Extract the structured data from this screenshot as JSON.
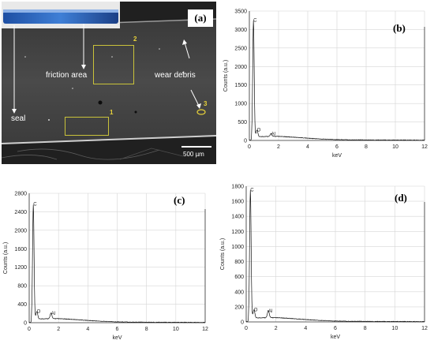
{
  "panel_a": {
    "label": "(a)",
    "annotations": {
      "friction_area": "friction area",
      "wear_debris": "wear debris",
      "seal": "seal",
      "region_1": "1",
      "region_2": "2",
      "region_3": "3"
    },
    "scale_bar": "500 µm"
  },
  "chart_data": [
    {
      "panel": "(b)",
      "type": "line",
      "xlabel": "keV",
      "ylabel": "Counts (a.u.)",
      "xlim": [
        0,
        12
      ],
      "ylim": [
        0,
        3500
      ],
      "xticks": [
        "0",
        "2",
        "4",
        "6",
        "8",
        "10",
        "12"
      ],
      "yticks": [
        "0",
        "500",
        "1000",
        "1500",
        "2000",
        "2500",
        "3000",
        "3500"
      ],
      "peaks": [
        {
          "label": "C",
          "x": 0.28,
          "y": 3150
        },
        {
          "label": "O",
          "x": 0.52,
          "y": 180
        },
        {
          "label": "Al",
          "x": 1.49,
          "y": 75
        }
      ],
      "grid": true
    },
    {
      "panel": "(c)",
      "type": "line",
      "xlabel": "keV",
      "ylabel": "Counts (a.u.)",
      "xlim": [
        0,
        12
      ],
      "ylim": [
        0,
        2800
      ],
      "xticks": [
        "0",
        "2",
        "4",
        "6",
        "8",
        "10",
        "12"
      ],
      "yticks": [
        "0",
        "400",
        "800",
        "1200",
        "1600",
        "2000",
        "2400",
        "2800"
      ],
      "peaks": [
        {
          "label": "C",
          "x": 0.28,
          "y": 2480
        },
        {
          "label": "O",
          "x": 0.52,
          "y": 160
        },
        {
          "label": "Al",
          "x": 1.49,
          "y": 120
        }
      ],
      "grid": true
    },
    {
      "panel": "(d)",
      "type": "line",
      "xlabel": "keV",
      "ylabel": "Counts (a.u.)",
      "xlim": [
        0,
        12
      ],
      "ylim": [
        0,
        1800
      ],
      "xticks": [
        "0",
        "2",
        "4",
        "6",
        "8",
        "10",
        "12"
      ],
      "yticks": [
        "0",
        "200",
        "400",
        "600",
        "800",
        "1000",
        "1200",
        "1400",
        "1600",
        "1800"
      ],
      "peaks": [
        {
          "label": "C",
          "x": 0.28,
          "y": 1700
        },
        {
          "label": "O",
          "x": 0.52,
          "y": 110
        },
        {
          "label": "Al",
          "x": 1.49,
          "y": 95
        }
      ],
      "grid": true
    }
  ]
}
